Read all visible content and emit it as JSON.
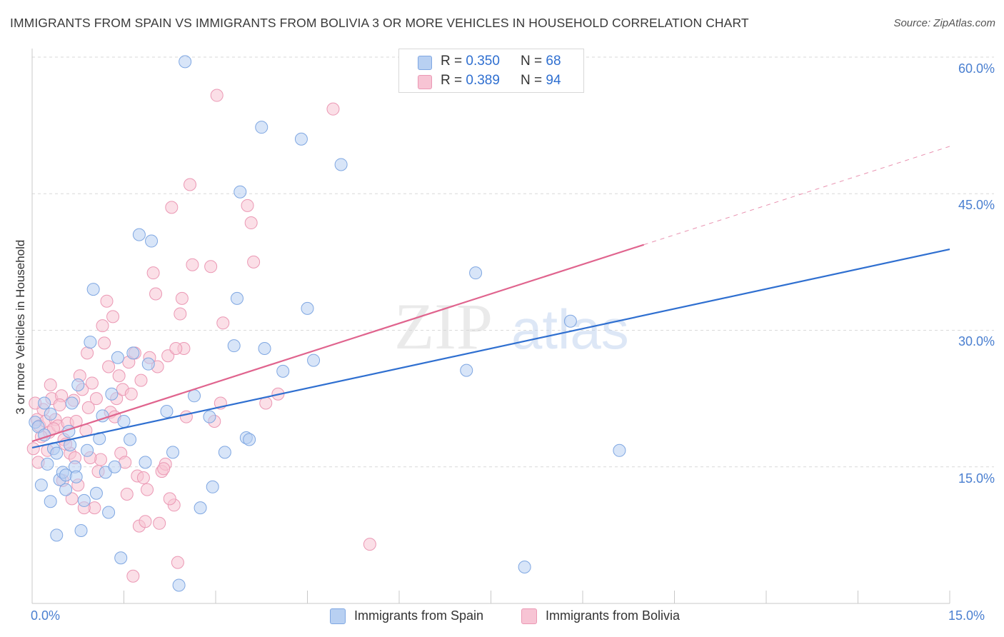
{
  "title": "IMMIGRANTS FROM SPAIN VS IMMIGRANTS FROM BOLIVIA 3 OR MORE VEHICLES IN HOUSEHOLD CORRELATION CHART",
  "source": "Source: ZipAtlas.com",
  "watermark": {
    "zip": "ZIP",
    "atlas": "atlas"
  },
  "legend": {
    "spain": {
      "r_label": "R =",
      "r_value": "0.350",
      "n_label": "N =",
      "n_value": "68"
    },
    "bolivia": {
      "r_label": "R =",
      "r_value": "0.389",
      "n_label": "N =",
      "n_value": "94"
    }
  },
  "colors": {
    "spain_fill": "#b8d0f2",
    "spain_stroke": "#7fa7e2",
    "spain_line": "#2f6fd0",
    "bolivia_fill": "#f7c4d4",
    "bolivia_stroke": "#eb98b4",
    "bolivia_line": "#e0648e",
    "tick_text": "#4a7fd0",
    "grid": "#d9d9d9"
  },
  "chart_data": {
    "type": "scatter",
    "title": "IMMIGRANTS FROM SPAIN VS IMMIGRANTS FROM BOLIVIA 3 OR MORE VEHICLES IN HOUSEHOLD CORRELATION CHART",
    "xlabel": "",
    "ylabel": "3 or more Vehicles in Household",
    "xlim": [
      0,
      15
    ],
    "ylim": [
      0,
      60
    ],
    "x_ticks": [
      {
        "value": 0,
        "label": "0.0%"
      },
      {
        "value": 15,
        "label": "15.0%"
      }
    ],
    "y_ticks": [
      {
        "value": 15,
        "label": "15.0%"
      },
      {
        "value": 30,
        "label": "30.0%"
      },
      {
        "value": 45,
        "label": "45.0%"
      },
      {
        "value": 60,
        "label": "60.0%"
      }
    ],
    "grid": true,
    "legend_position": "top-center",
    "series": [
      {
        "name": "Immigrants from Spain",
        "r": 0.35,
        "n": 68,
        "trend": {
          "x": [
            0,
            15
          ],
          "y": [
            17.1,
            38.9
          ]
        },
        "points": [
          [
            0.05,
            19.9
          ],
          [
            0.1,
            19.4
          ],
          [
            0.2,
            18.5
          ],
          [
            0.25,
            15.3
          ],
          [
            0.15,
            13.0
          ],
          [
            0.3,
            11.2
          ],
          [
            0.35,
            17.0
          ],
          [
            0.4,
            16.5
          ],
          [
            0.45,
            13.6
          ],
          [
            0.5,
            14.4
          ],
          [
            0.55,
            14.1
          ],
          [
            0.6,
            18.9
          ],
          [
            0.62,
            17.4
          ],
          [
            0.7,
            15.0
          ],
          [
            0.72,
            13.9
          ],
          [
            0.75,
            24.0
          ],
          [
            0.8,
            8.0
          ],
          [
            0.85,
            11.3
          ],
          [
            0.9,
            16.8
          ],
          [
            0.95,
            28.7
          ],
          [
            1.05,
            12.1
          ],
          [
            1.1,
            18.1
          ],
          [
            1.2,
            14.4
          ],
          [
            1.25,
            10.0
          ],
          [
            1.3,
            23.0
          ],
          [
            1.35,
            15.0
          ],
          [
            1.4,
            27.0
          ],
          [
            1.5,
            20.0
          ],
          [
            1.65,
            27.5
          ],
          [
            1.6,
            18.0
          ],
          [
            1.75,
            40.5
          ],
          [
            1.95,
            39.8
          ],
          [
            1.9,
            26.3
          ],
          [
            2.2,
            21.1
          ],
          [
            2.3,
            16.6
          ],
          [
            2.5,
            59.5
          ],
          [
            2.4,
            2.0
          ],
          [
            2.65,
            22.8
          ],
          [
            2.9,
            20.5
          ],
          [
            2.95,
            12.8
          ],
          [
            3.15,
            16.6
          ],
          [
            3.3,
            28.3
          ],
          [
            3.35,
            33.5
          ],
          [
            3.4,
            45.2
          ],
          [
            3.5,
            18.2
          ],
          [
            3.55,
            18.0
          ],
          [
            3.75,
            52.3
          ],
          [
            3.8,
            28.0
          ],
          [
            4.1,
            25.5
          ],
          [
            4.4,
            51.0
          ],
          [
            4.5,
            32.4
          ],
          [
            4.6,
            26.7
          ],
          [
            5.05,
            48.2
          ],
          [
            7.1,
            25.6
          ],
          [
            7.25,
            36.3
          ],
          [
            8.05,
            4.0
          ],
          [
            8.8,
            31.0
          ],
          [
            9.6,
            16.8
          ],
          [
            1.15,
            20.6
          ],
          [
            1.45,
            5.0
          ],
          [
            0.65,
            22.0
          ],
          [
            1.0,
            34.5
          ],
          [
            0.4,
            7.5
          ],
          [
            2.75,
            10.5
          ],
          [
            0.55,
            12.5
          ],
          [
            1.85,
            15.5
          ],
          [
            0.3,
            20.8
          ],
          [
            0.2,
            22.0
          ]
        ]
      },
      {
        "name": "Immigrants from Bolivia",
        "r": 0.389,
        "n": 94,
        "trend": {
          "x": [
            0,
            10
          ],
          "y": [
            17.8,
            39.4
          ]
        },
        "trend_dashed": {
          "x": [
            10,
            15
          ],
          "y": [
            39.4,
            50.2
          ]
        },
        "points": [
          [
            0.02,
            17.0
          ],
          [
            0.08,
            20.2
          ],
          [
            0.12,
            19.5
          ],
          [
            0.18,
            21.3
          ],
          [
            0.22,
            20.0
          ],
          [
            0.28,
            18.8
          ],
          [
            0.32,
            22.5
          ],
          [
            0.38,
            20.2
          ],
          [
            0.42,
            19.5
          ],
          [
            0.48,
            22.8
          ],
          [
            0.52,
            18.0
          ],
          [
            0.58,
            19.8
          ],
          [
            0.62,
            16.5
          ],
          [
            0.68,
            22.3
          ],
          [
            0.72,
            20.0
          ],
          [
            0.78,
            25.0
          ],
          [
            0.82,
            23.5
          ],
          [
            0.88,
            19.0
          ],
          [
            0.92,
            21.5
          ],
          [
            0.98,
            24.2
          ],
          [
            1.02,
            10.5
          ],
          [
            1.05,
            22.5
          ],
          [
            1.08,
            14.5
          ],
          [
            1.12,
            15.8
          ],
          [
            1.18,
            28.6
          ],
          [
            1.22,
            33.2
          ],
          [
            1.25,
            26.0
          ],
          [
            1.28,
            21.0
          ],
          [
            1.32,
            31.5
          ],
          [
            1.38,
            22.5
          ],
          [
            1.42,
            25.0
          ],
          [
            1.45,
            16.5
          ],
          [
            1.48,
            23.5
          ],
          [
            1.52,
            15.5
          ],
          [
            1.58,
            26.5
          ],
          [
            1.62,
            23.0
          ],
          [
            1.68,
            27.5
          ],
          [
            1.72,
            14.0
          ],
          [
            1.78,
            24.5
          ],
          [
            1.82,
            13.8
          ],
          [
            1.88,
            12.5
          ],
          [
            1.92,
            27.0
          ],
          [
            1.98,
            36.3
          ],
          [
            2.02,
            34.0
          ],
          [
            2.08,
            8.8
          ],
          [
            2.12,
            14.5
          ],
          [
            2.18,
            15.3
          ],
          [
            2.22,
            27.2
          ],
          [
            2.28,
            43.5
          ],
          [
            2.32,
            10.8
          ],
          [
            2.38,
            4.5
          ],
          [
            2.42,
            31.8
          ],
          [
            2.48,
            28.0
          ],
          [
            2.52,
            20.5
          ],
          [
            2.58,
            46.0
          ],
          [
            2.62,
            37.2
          ],
          [
            2.92,
            37.0
          ],
          [
            2.98,
            20.0
          ],
          [
            3.02,
            55.8
          ],
          [
            3.08,
            22.0
          ],
          [
            3.12,
            30.8
          ],
          [
            3.52,
            43.7
          ],
          [
            3.58,
            41.8
          ],
          [
            3.62,
            37.5
          ],
          [
            3.82,
            22.0
          ],
          [
            4.02,
            23.0
          ],
          [
            4.92,
            54.3
          ],
          [
            5.52,
            6.5
          ],
          [
            0.15,
            18.3
          ],
          [
            0.25,
            16.8
          ],
          [
            0.35,
            19.2
          ],
          [
            0.45,
            21.8
          ],
          [
            0.55,
            17.5
          ],
          [
            0.65,
            11.5
          ],
          [
            0.75,
            13.0
          ],
          [
            0.85,
            10.5
          ],
          [
            0.95,
            16.0
          ],
          [
            1.15,
            30.5
          ],
          [
            1.35,
            20.5
          ],
          [
            1.55,
            12.0
          ],
          [
            1.65,
            3.0
          ],
          [
            1.75,
            8.5
          ],
          [
            1.85,
            9.0
          ],
          [
            2.05,
            26.0
          ],
          [
            2.15,
            14.8
          ],
          [
            2.25,
            11.5
          ],
          [
            2.35,
            28.0
          ],
          [
            2.45,
            33.5
          ],
          [
            0.05,
            22.0
          ],
          [
            0.1,
            15.5
          ],
          [
            0.3,
            24.0
          ],
          [
            0.5,
            13.5
          ],
          [
            0.7,
            16.0
          ],
          [
            0.9,
            27.5
          ]
        ]
      }
    ]
  },
  "bottom_legend": {
    "spain_label": "Immigrants from Spain",
    "bolivia_label": "Immigrants from Bolivia"
  }
}
